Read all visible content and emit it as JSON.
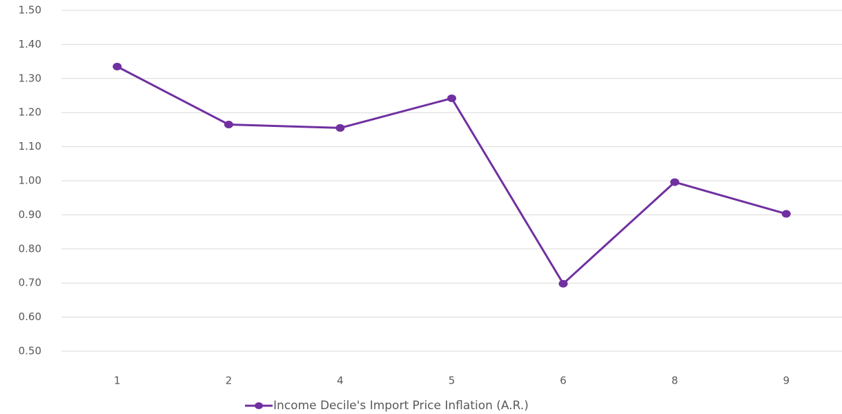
{
  "chart_data": {
    "type": "line",
    "categories": [
      "1",
      "2",
      "4",
      "5",
      "6",
      "8",
      "9"
    ],
    "series": [
      {
        "name": "Income Decile's Import Price Inflation (A.R.)",
        "color": "#7030a0",
        "values": [
          1.335,
          1.165,
          1.155,
          1.242,
          0.698,
          0.996,
          0.903
        ]
      }
    ],
    "ylim": [
      0.5,
      1.5
    ],
    "yticks": [
      {
        "value": 0.5,
        "label": "0.50"
      },
      {
        "value": 0.6,
        "label": "0.60"
      },
      {
        "value": 0.7,
        "label": "0.70"
      },
      {
        "value": 0.8,
        "label": "0.80"
      },
      {
        "value": 0.9,
        "label": "0.90"
      },
      {
        "value": 1.0,
        "label": "1.00"
      },
      {
        "value": 1.1,
        "label": "1.10"
      },
      {
        "value": 1.2,
        "label": "1.20"
      },
      {
        "value": 1.3,
        "label": "1.30"
      },
      {
        "value": 1.4,
        "label": "1.40"
      },
      {
        "value": 1.5,
        "label": "1.50"
      }
    ],
    "grid": true,
    "legend": "bottom"
  }
}
